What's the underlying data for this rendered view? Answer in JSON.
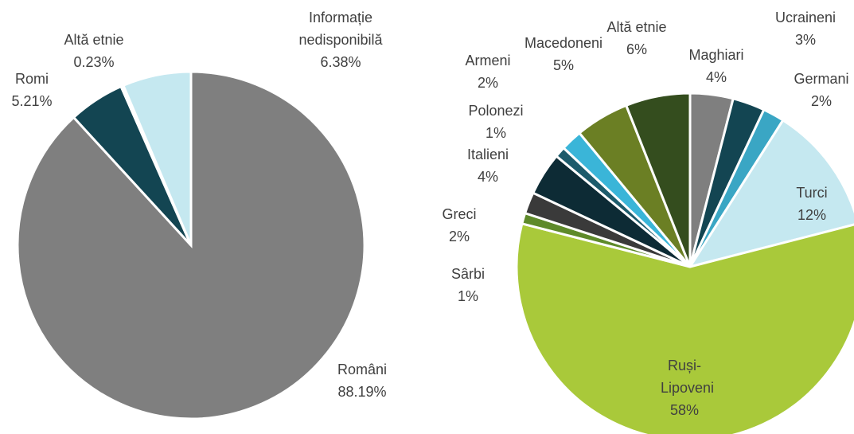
{
  "chart_data": [
    {
      "type": "pie",
      "categories": [
        "Români",
        "Romi",
        "Altă etnie",
        "Informație nedisponibilă"
      ],
      "values": [
        88.19,
        5.21,
        0.23,
        6.38
      ],
      "value_labels": [
        "88.19%",
        "5.21%",
        "0.23%",
        "6.38%"
      ],
      "colors": [
        "#7f7f7f",
        "#134552",
        "#c5e8f0",
        "#c5e8f0"
      ]
    },
    {
      "type": "pie",
      "categories": [
        "Maghiari",
        "Ucraineni",
        "Germani",
        "Turci",
        "Ruși-Lipoveni",
        "Sârbi",
        "Greci",
        "Italieni",
        "Polonezi",
        "Armeni",
        "Macedoneni",
        "Altă etnie"
      ],
      "values": [
        4,
        3,
        2,
        12,
        58,
        1,
        2,
        4,
        1,
        2,
        5,
        6
      ],
      "value_labels": [
        "4%",
        "3%",
        "2%",
        "12%",
        "58%",
        "1%",
        "2%",
        "4%",
        "1%",
        "2%",
        "5%",
        "6%"
      ],
      "colors": [
        "#7f7f7f",
        "#134552",
        "#3aa6c4",
        "#c5e8f0",
        "#a9c93a",
        "#5e8a2a",
        "#3a3a3a",
        "#0d2b35",
        "#1d5b6b",
        "#3ab5d8",
        "#6b7f24",
        "#344d1e"
      ]
    }
  ]
}
